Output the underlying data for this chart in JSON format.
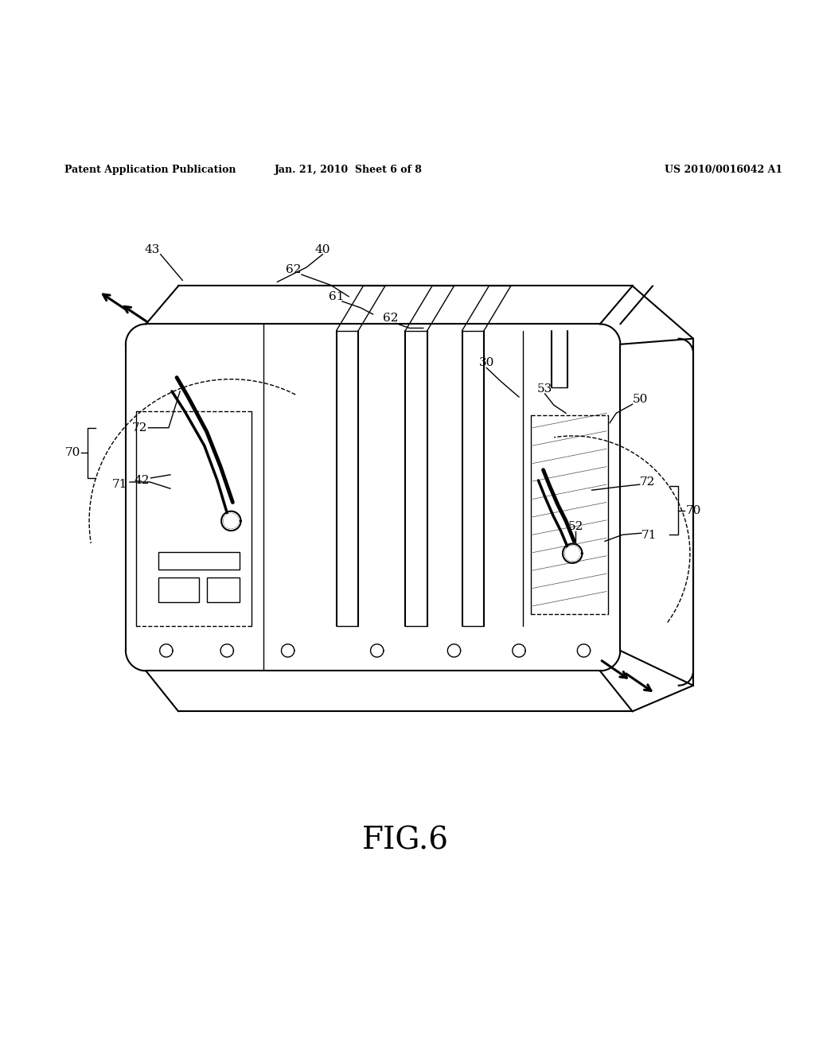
{
  "bg_color": "#ffffff",
  "header_left": "Patent Application Publication",
  "header_center": "Jan. 21, 2010  Sheet 6 of 8",
  "header_right": "US 2010/0016042 A1",
  "fig_label": "FIG.6"
}
